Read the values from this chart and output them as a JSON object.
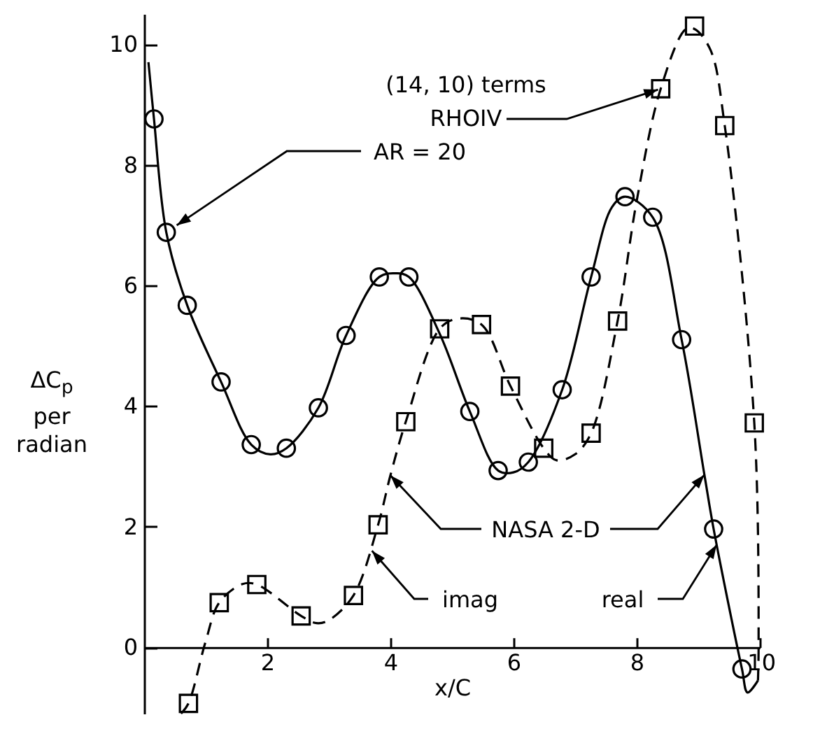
{
  "chart_data": {
    "type": "line",
    "xlabel": "x/C",
    "ylabel": "ΔC$_{p}$ per radian",
    "xlim": [
      0,
      10
    ],
    "ylim": [
      -1.1,
      10.5
    ],
    "xticks": [
      2,
      4,
      6,
      8,
      10
    ],
    "yticks": [
      0,
      2,
      4,
      6,
      8,
      10
    ],
    "grid": false,
    "series": [
      {
        "color": "#000000",
        "line_style": "solid",
        "marker": "none",
        "x": [
          0.07,
          0.16,
          0.36,
          0.7,
          1.25,
          1.74,
          2.05,
          2.31,
          2.83,
          3.28,
          3.82,
          4.1,
          4.3,
          4.8,
          5.29,
          5.75,
          6.0,
          6.24,
          6.79,
          7.26,
          7.6,
          7.81,
          8.26,
          8.73,
          9.1,
          9.25,
          9.71,
          9.8,
          9.97
        ],
        "values": [
          9.7,
          8.76,
          6.88,
          5.67,
          4.4,
          3.36,
          3.2,
          3.3,
          3.97,
          5.17,
          6.14,
          6.2,
          6.14,
          5.2,
          3.91,
          2.93,
          2.9,
          3.07,
          4.27,
          6.14,
          7.3,
          7.47,
          7.13,
          5.1,
          2.86,
          1.96,
          -0.36,
          -0.75,
          -0.55
        ]
      },
      {
        "color": "#000000",
        "line_style": "dashed",
        "marker": "none",
        "x": [
          0.6,
          0.72,
          1.0,
          1.22,
          1.6,
          1.83,
          2.55,
          2.8,
          3.0,
          3.4,
          3.8,
          4.0,
          4.25,
          4.8,
          5.1,
          5.48,
          5.95,
          6.49,
          6.7,
          7.0,
          7.26,
          7.69,
          8.0,
          8.39,
          8.8,
          8.94,
          9.2,
          9.43,
          9.91,
          9.98,
          9.97
        ],
        "values": [
          -1.1,
          -0.93,
          0.1,
          0.74,
          1.05,
          1.04,
          0.52,
          0.4,
          0.45,
          0.86,
          2.03,
          2.85,
          3.74,
          5.28,
          5.45,
          5.35,
          4.33,
          3.3,
          3.1,
          3.2,
          3.55,
          5.41,
          7.4,
          9.26,
          10.25,
          10.25,
          9.9,
          8.65,
          3.72,
          0,
          -0.55
        ]
      },
      {
        "type": "scatter",
        "color": "#000000",
        "marker": "circle",
        "x": [
          0.16,
          0.36,
          0.7,
          1.25,
          1.74,
          2.31,
          2.83,
          3.28,
          3.82,
          4.3,
          5.29,
          5.75,
          6.24,
          6.79,
          7.26,
          7.81,
          8.26,
          8.73,
          9.25,
          9.71
        ],
        "values": [
          8.76,
          6.88,
          5.67,
          4.4,
          3.36,
          3.3,
          3.97,
          5.17,
          6.14,
          6.14,
          3.91,
          2.93,
          3.07,
          4.27,
          6.14,
          7.47,
          7.13,
          5.1,
          1.96,
          -0.36
        ]
      },
      {
        "type": "scatter",
        "color": "#000000",
        "marker": "square",
        "x": [
          0.72,
          1.22,
          1.83,
          2.55,
          3.4,
          3.8,
          4.25,
          4.8,
          5.48,
          5.95,
          6.49,
          7.26,
          7.69,
          8.39,
          8.94,
          9.43,
          9.91
        ],
        "values": [
          -0.93,
          0.74,
          1.04,
          0.52,
          0.86,
          2.03,
          3.74,
          5.28,
          5.35,
          4.33,
          3.3,
          3.55,
          5.41,
          9.26,
          10.3,
          8.65,
          3.72
        ]
      }
    ],
    "annotations": [
      "(14, 10) terms",
      {
        "text": "RHOIV",
        "x": 8.39,
        "y": 9.26
      },
      {
        "text": "AR = 20",
        "x": 0.36,
        "y": 6.88
      },
      {
        "text": "NASA 2-D",
        "x": 9.1,
        "y": 2.86
      },
      {
        "text": "imag",
        "x": 3.7,
        "y": 1.6
      },
      {
        "text": "real",
        "x": 9.3,
        "y": 1.7
      }
    ]
  }
}
